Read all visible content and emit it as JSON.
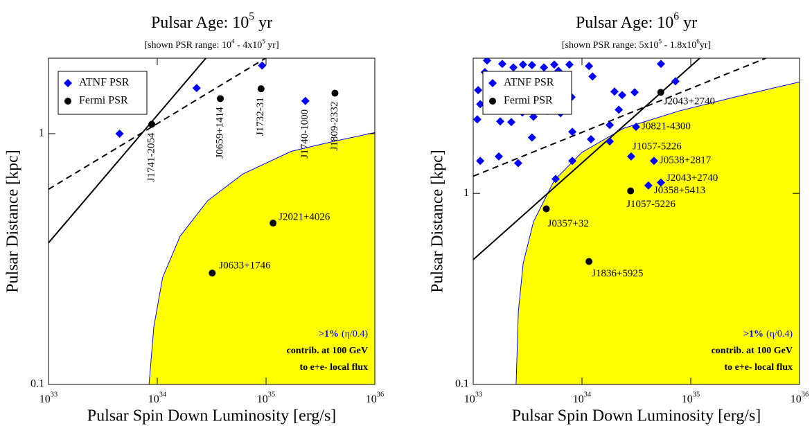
{
  "chart_data": [
    {
      "type": "scatter",
      "title": [
        "Pulsar Age: 10",
        "5",
        " yr"
      ],
      "subtitle": [
        "[shown PSR range: 10",
        "4",
        " -  4x10",
        "5",
        " yr]"
      ],
      "x_label": "Pulsar Spin Down Luminosity [erg/s]",
      "y_label": "Pulsar Distance [kpc]",
      "xscale": "log",
      "yscale": "log",
      "xlim": [
        1e+33,
        1e+36
      ],
      "ylim": [
        0.1,
        2
      ],
      "xticks": [
        {
          "value": 1e+33,
          "label": [
            "10",
            "33"
          ]
        },
        {
          "value": 1e+34,
          "label": [
            "10",
            "34"
          ]
        },
        {
          "value": 1e+35,
          "label": [
            "10",
            "35"
          ]
        },
        {
          "value": 1e+36,
          "label": [
            "10",
            "36"
          ]
        }
      ],
      "yticks": [
        {
          "value": 0.1,
          "label": "0.1"
        },
        1
      ],
      "legend": "upper left",
      "series": [
        {
          "name": "ATNF PSR",
          "color": "#0000ff",
          "marker": "diamond",
          "x": [
            4.5e+33,
            2.3e+34,
            9.2e+34,
            2.3e+35
          ],
          "values": [
            1.0,
            1.52,
            1.87,
            1.35
          ],
          "labels": [
            null,
            null,
            null,
            "J1740-1000"
          ]
        },
        {
          "name": "Fermi PSR",
          "color": "#000000",
          "marker": "circle",
          "x": [
            8.9e+33,
            3.8e+34,
            9e+34,
            4.3e+35,
            1.16e+35,
            3.2e+34
          ],
          "values": [
            1.09,
            1.38,
            1.51,
            1.45,
            0.44,
            0.278
          ],
          "labels": [
            "J1741-2054",
            "J0659+1414",
            "J1732-31",
            "J1809-2332",
            "J2021+4026",
            "J0633+1746"
          ]
        }
      ],
      "lines": [
        {
          "style": "solid",
          "color": "#000000",
          "x": [
            1e+33,
            2.8e+34
          ],
          "values": [
            0.367,
            2
          ]
        },
        {
          "style": "dashed",
          "color": "#000000",
          "x": [
            1e+33,
            9.9e+34
          ],
          "values": [
            0.6,
            2
          ]
        }
      ],
      "region": {
        "color": "#ffff00",
        "edge": "#0000ff",
        "x": [
          8.4e+33,
          9.3e+33,
          1.12e+34,
          1.62e+34,
          2.9e+34,
          6.1e+34,
          1.7e+35,
          4.1e+35,
          1e+36
        ],
        "values": [
          0.1,
          0.17,
          0.267,
          0.39,
          0.54,
          0.69,
          0.85,
          0.93,
          1.01
        ]
      },
      "annotation": [
        ">1%",
        "(η/0.4)",
        "contrib. at 100 GeV",
        "to e+e- local flux"
      ],
      "annotation_color": "#0000ff"
    },
    {
      "type": "scatter",
      "title": [
        "Pulsar Age: 10",
        "6",
        " yr"
      ],
      "subtitle": [
        "[shown PSR range: 5x10",
        "5",
        " - 1.8x10",
        "6",
        "yr]"
      ],
      "x_label": "Pulsar Spin Down Luminosity [erg/s]",
      "y_label": "Pulsar Distance [kpc]",
      "xscale": "log",
      "yscale": "log",
      "xlim": [
        1e+33,
        1e+36
      ],
      "ylim": [
        0.1,
        5.1
      ],
      "xticks": [
        {
          "value": 1e+33,
          "label": [
            "10",
            "33"
          ]
        },
        {
          "value": 1e+34,
          "label": [
            "10",
            "34"
          ]
        },
        {
          "value": 1e+35,
          "label": [
            "10",
            "35"
          ]
        },
        {
          "value": 1e+36,
          "label": [
            "10",
            "36"
          ]
        }
      ],
      "yticks": [
        {
          "value": 0.1,
          "label": "0.1"
        },
        1
      ],
      "legend": "upper left",
      "series": [
        {
          "name": "ATNF PSR",
          "color": "#0000ff",
          "marker": "diamond",
          "x": [
            1.34e+33,
            1.85e+33,
            2.34e+33,
            2.87e+33,
            3.47e+33,
            4.47e+33,
            5.56e+33,
            6.07e+33,
            7.67e+33,
            1.16e+34,
            1.28e+33,
            1.62e+33,
            2.45e+33,
            3.09e+33,
            4.59e+33,
            5.9e+33,
            1.25e+34,
            1.11e+33,
            1.67e+33,
            2.31e+33,
            3.47e+33,
            4.34e+33,
            5.32e+33,
            6.73e+33,
            8.02e+33,
            1.99e+34,
            2.34e+34,
            3.05e+34,
            5.32e+34,
            7.24e+34,
            1.09e+33,
            1.77e+33,
            2.24e+33,
            3.58e+33,
            4.81e+33,
            6.35e+33,
            2.18e+34,
            1.8e+34,
            1.8e+34,
            3.47e+33,
            8.15e+33,
            1.16e+33,
            1.72e+33,
            2.59e+33,
            1.21e+34,
            8.15e+33,
            5.73e+33,
            2.83e+33,
            1.16e+33,
            3.14e+34,
            2.83e+34,
            4.59e+34,
            5.32e+34,
            4.08e+34
          ],
          "values": [
            4.96,
            4.76,
            4.56,
            4.72,
            4.69,
            4.56,
            4.72,
            4.38,
            4.72,
            4.64,
            4.31,
            4.03,
            3.67,
            4.17,
            3.83,
            4.03,
            4.09,
            3.47,
            3.19,
            3.24,
            2.93,
            3.24,
            3.06,
            2.86,
            3.19,
            3.41,
            3.27,
            3.38,
            4.76,
            3.86,
            2.44,
            2.38,
            2.36,
            2.52,
            2.7,
            2.63,
            2.74,
            2.28,
            1.87,
            1.96,
            2.1,
            1.48,
            1.56,
            1.44,
            1.92,
            1.48,
            1.19,
            2.65,
            2.93,
            2.23,
            1.56,
            1.48,
            1.14,
            1.1
          ],
          "labels": [
            null,
            null,
            null,
            null,
            null,
            null,
            null,
            null,
            null,
            null,
            null,
            null,
            null,
            null,
            null,
            null,
            null,
            null,
            null,
            null,
            null,
            null,
            null,
            null,
            null,
            null,
            null,
            null,
            null,
            null,
            null,
            null,
            null,
            null,
            null,
            null,
            null,
            null,
            null,
            null,
            null,
            null,
            null,
            null,
            null,
            null,
            null,
            null,
            null,
            "J0821-4300",
            "J1057-5226",
            "J0538+2817",
            "J2043+2740",
            "J0358+5413"
          ]
        },
        {
          "name": "Fermi PSR",
          "color": "#000000",
          "marker": "circle",
          "x": [
            5.3e+34,
            2.8e+34,
            4.7e+33,
            1.16e+34
          ],
          "values": [
            3.38,
            1.03,
            0.83,
            0.44
          ],
          "labels": [
            "J2043+2740",
            "J1057-5226",
            "J0357+32",
            "J1836+5925"
          ]
        }
      ],
      "lines": [
        {
          "style": "solid",
          "color": "#000000",
          "x": [
            1e+33,
            1.21e+35
          ],
          "values": [
            0.45,
            5.1
          ]
        },
        {
          "style": "dashed",
          "color": "#000000",
          "x": [
            1e+33,
            4.9e+35
          ],
          "values": [
            1.23,
            5.1
          ]
        }
      ],
      "region": {
        "color": "#ffff00",
        "edge": "#0000ff",
        "x": [
          2.48e+33,
          2.6e+33,
          2.88e+33,
          3.58e+33,
          5.56e+33,
          1e+34,
          2.41e+34,
          7.8e+34,
          2.52e+35,
          1e+36
        ],
        "values": [
          0.1,
          0.24,
          0.43,
          0.71,
          1.17,
          1.64,
          2.19,
          2.7,
          3.19,
          3.83
        ]
      },
      "annotation": [
        ">1%",
        "(η/0.4)",
        "contrib. at 100 GeV",
        "to e+e- local flux"
      ],
      "annotation_color": "#0000ff"
    }
  ]
}
